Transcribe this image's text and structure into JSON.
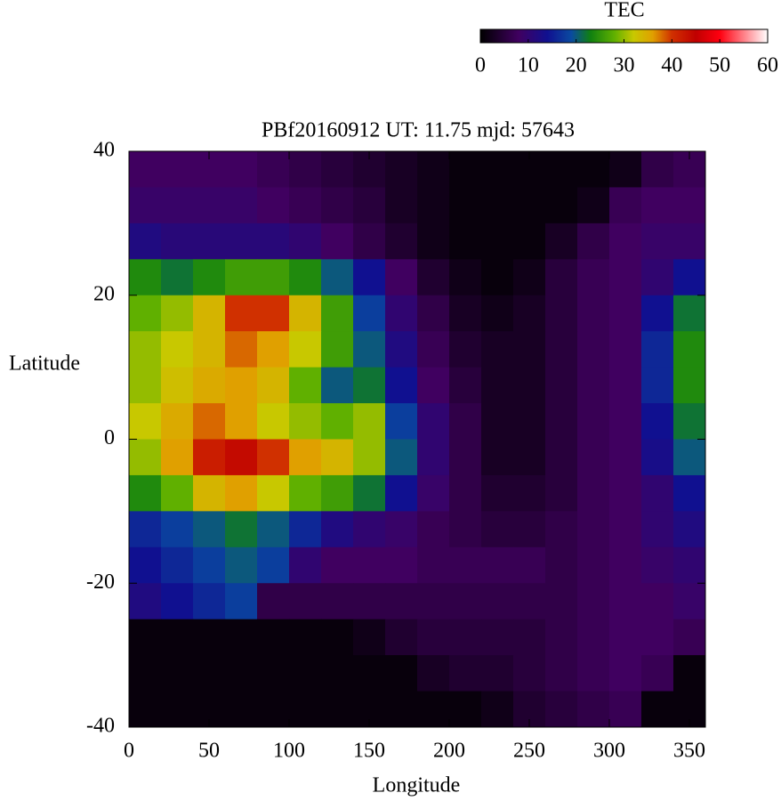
{
  "chart_data": {
    "type": "heatmap",
    "title": "PBf20160912  UT: 11.75  mjd: 57643",
    "x_label": "Longitude",
    "y_label": "Latitude",
    "colorbar_label": "TEC",
    "x": [
      10,
      30,
      50,
      70,
      90,
      110,
      130,
      150,
      170,
      190,
      210,
      230,
      250,
      270,
      290,
      310,
      330,
      350
    ],
    "y": [
      37.5,
      32.5,
      27.5,
      22.5,
      17.5,
      12.5,
      7.5,
      2.5,
      -2.5,
      -7.5,
      -12.5,
      -17.5,
      -22.5,
      -27.5,
      -32.5,
      -37.5
    ],
    "values": [
      [
        8,
        8,
        8,
        8,
        7,
        6,
        5,
        4,
        3,
        2,
        1,
        1,
        1,
        1,
        1,
        2,
        6,
        7
      ],
      [
        9,
        9,
        9,
        9,
        8,
        7,
        6,
        5,
        3,
        2,
        1,
        1,
        1,
        1,
        2,
        7,
        8,
        8
      ],
      [
        12,
        11,
        11,
        11,
        11,
        10,
        8,
        6,
        4,
        2,
        1,
        1,
        1,
        3,
        6,
        8,
        9,
        9
      ],
      [
        24,
        22,
        24,
        26,
        26,
        24,
        20,
        14,
        8,
        4,
        2,
        1,
        2,
        5,
        7,
        8,
        10,
        14
      ],
      [
        28,
        30,
        34,
        40,
        40,
        34,
        26,
        18,
        10,
        6,
        3,
        2,
        3,
        5,
        7,
        8,
        14,
        22
      ],
      [
        30,
        32,
        34,
        38,
        36,
        32,
        26,
        20,
        12,
        7,
        4,
        3,
        3,
        5,
        7,
        8,
        16,
        24
      ],
      [
        30,
        33,
        35,
        36,
        34,
        28,
        20,
        22,
        14,
        8,
        5,
        3,
        3,
        5,
        7,
        8,
        16,
        24
      ],
      [
        32,
        35,
        38,
        36,
        32,
        30,
        28,
        30,
        18,
        10,
        6,
        3,
        3,
        5,
        7,
        8,
        14,
        22
      ],
      [
        30,
        36,
        42,
        44,
        40,
        36,
        34,
        30,
        20,
        10,
        6,
        3,
        3,
        5,
        7,
        8,
        13,
        20
      ],
      [
        24,
        28,
        34,
        36,
        32,
        28,
        26,
        22,
        14,
        9,
        6,
        4,
        4,
        5,
        7,
        8,
        10,
        14
      ],
      [
        16,
        18,
        20,
        22,
        20,
        16,
        12,
        10,
        9,
        7,
        6,
        5,
        5,
        6,
        7,
        8,
        10,
        12
      ],
      [
        14,
        16,
        18,
        20,
        18,
        10,
        8,
        8,
        8,
        7,
        7,
        7,
        7,
        6,
        7,
        8,
        9,
        10
      ],
      [
        12,
        14,
        16,
        18,
        6,
        6,
        6,
        6,
        6,
        6,
        6,
        6,
        6,
        6,
        7,
        8,
        8,
        9
      ],
      [
        1,
        1,
        1,
        1,
        1,
        1,
        1,
        2,
        4,
        5,
        5,
        5,
        5,
        6,
        7,
        8,
        8,
        7
      ],
      [
        1,
        1,
        1,
        1,
        1,
        1,
        1,
        1,
        1,
        3,
        4,
        4,
        5,
        6,
        7,
        8,
        7,
        1
      ],
      [
        1,
        1,
        1,
        1,
        1,
        1,
        1,
        1,
        1,
        1,
        1,
        2,
        4,
        5,
        6,
        7,
        1,
        1
      ]
    ],
    "cell_size": [
      20,
      5
    ],
    "xlim": [
      0,
      360
    ],
    "xticks": [
      0,
      50,
      100,
      150,
      200,
      250,
      300,
      350
    ],
    "ylim": [
      -40,
      40
    ],
    "yticks": [
      -40,
      -20,
      0,
      20,
      40
    ],
    "clim": [
      0,
      60
    ],
    "cticks": [
      0,
      10,
      20,
      30,
      40,
      50,
      60
    ],
    "colormap": [
      [
        0,
        "#000000"
      ],
      [
        8,
        "#400060"
      ],
      [
        14,
        "#101090"
      ],
      [
        19,
        "#0a4aa0"
      ],
      [
        23,
        "#108010"
      ],
      [
        28,
        "#60b000"
      ],
      [
        32,
        "#c8c800"
      ],
      [
        36,
        "#e0a000"
      ],
      [
        40,
        "#d03000"
      ],
      [
        45,
        "#c00000"
      ],
      [
        50,
        "#ff0010"
      ],
      [
        60,
        "#ffffff"
      ]
    ]
  }
}
